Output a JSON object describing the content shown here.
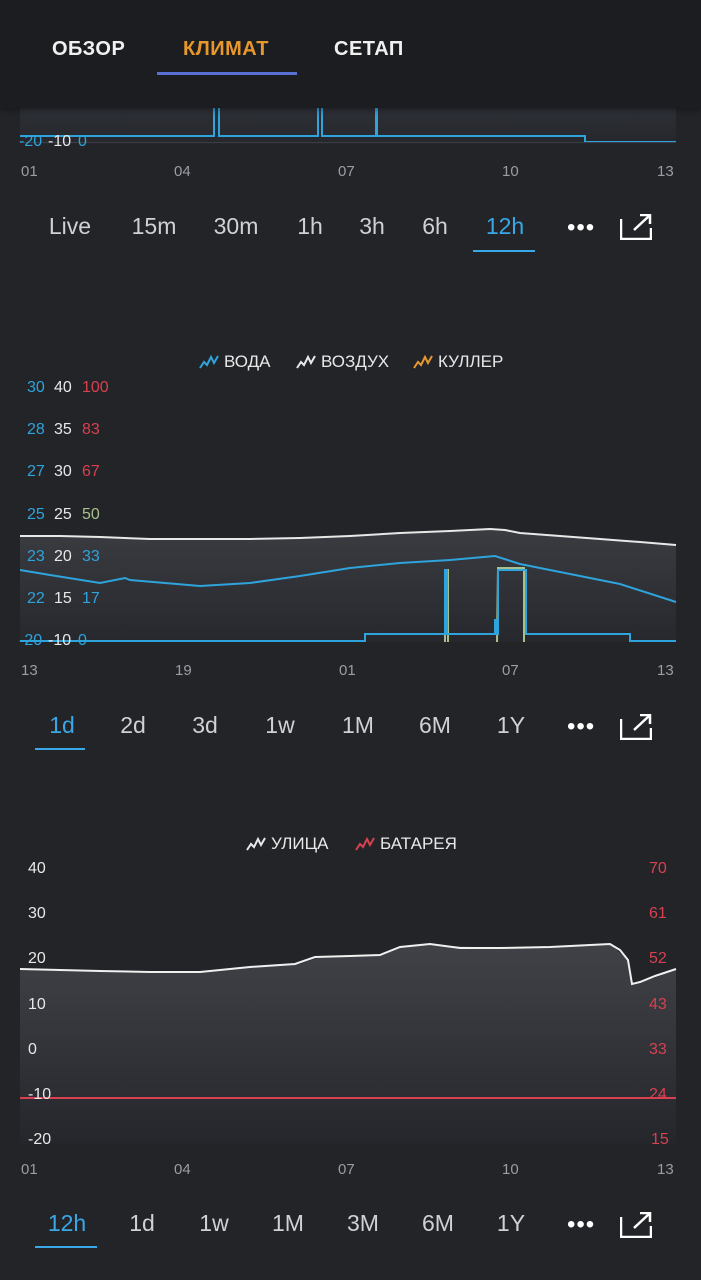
{
  "header": {
    "tabs": [
      {
        "label": "ОБЗОР",
        "active": false
      },
      {
        "label": "КЛИМАТ",
        "active": true
      },
      {
        "label": "СЕТАП",
        "active": false
      }
    ],
    "active_color": "#e8972d"
  },
  "chart1": {
    "y_labels": {
      "water": "-20",
      "air": "-10",
      "cooler": "0"
    },
    "x_labels": [
      "01",
      "04",
      "07",
      "10",
      "13"
    ],
    "ranges": [
      "Live",
      "15m",
      "30m",
      "1h",
      "3h",
      "6h",
      "12h"
    ],
    "active_range": "12h"
  },
  "chart2": {
    "legend": [
      "ВОДА",
      "ВОЗДУХ",
      "КУЛЛЕР"
    ],
    "y_water": [
      "30",
      "28",
      "27",
      "25",
      "23",
      "22",
      "-20"
    ],
    "y_air": [
      "40",
      "35",
      "30",
      "25",
      "20",
      "15",
      "-10"
    ],
    "y_cooler": [
      "100",
      "83",
      "67",
      "50",
      "33",
      "17",
      "0"
    ],
    "x_labels": [
      "13",
      "19",
      "01",
      "07",
      "13"
    ],
    "ranges": [
      "1d",
      "2d",
      "3d",
      "1w",
      "1M",
      "6M",
      "1Y"
    ],
    "active_range": "1d"
  },
  "chart3": {
    "legend": [
      "УЛИЦА",
      "БАТАРЕЯ"
    ],
    "y_left": [
      "40",
      "30",
      "20",
      "10",
      "0",
      "-10",
      "-20"
    ],
    "y_right": [
      "70",
      "61",
      "52",
      "43",
      "33",
      "24",
      "15"
    ],
    "x_labels": [
      "01",
      "04",
      "07",
      "10",
      "13"
    ],
    "ranges": [
      "12h",
      "1d",
      "1w",
      "1M",
      "3M",
      "6M",
      "1Y"
    ],
    "active_range": "12h"
  },
  "colors": {
    "water": "#2fa3dc",
    "air": "#e8e8e8",
    "cooler": "#e8972d",
    "battery": "#d8414f",
    "active_range": "#3aa8e8"
  }
}
